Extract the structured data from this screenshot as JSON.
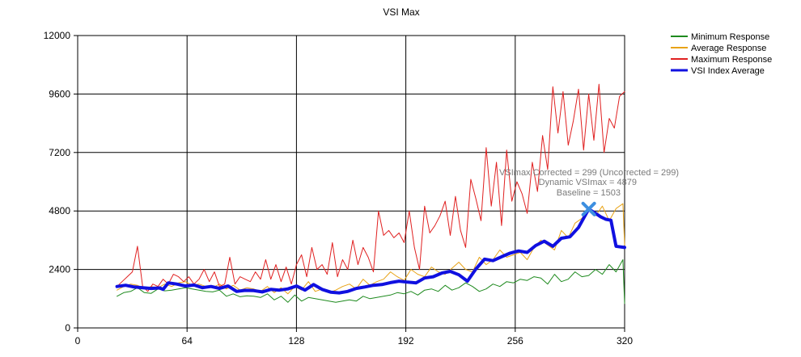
{
  "chart_data": {
    "type": "line",
    "title": "VSI Max",
    "xlabel": "",
    "ylabel": "",
    "xlim": [
      0,
      320
    ],
    "ylim": [
      0,
      12000
    ],
    "x_ticks": [
      "0",
      "64",
      "128",
      "192",
      "256",
      "320"
    ],
    "y_ticks": [
      "0",
      "2400",
      "4800",
      "7200",
      "9600",
      "12000"
    ],
    "grid": true,
    "legend_position": "top-right",
    "annotations": [
      "VSImax Corrected = 299 (Uncorrected = 299)",
      "Dynamic VSImax = 4879",
      "Baseline = 1503"
    ],
    "vsimax_marker": {
      "x": 299,
      "y": 4879,
      "color": "#3d8fe0"
    },
    "series": [
      {
        "name": "Minimum Response",
        "color": "#1e8a1e",
        "width": 1,
        "x": [
          23,
          27,
          31,
          35,
          39,
          43,
          47,
          51,
          55,
          59,
          63,
          67,
          71,
          75,
          79,
          83,
          87,
          91,
          95,
          99,
          103,
          107,
          111,
          115,
          119,
          123,
          127,
          131,
          135,
          139,
          143,
          147,
          151,
          155,
          159,
          163,
          167,
          171,
          175,
          179,
          183,
          187,
          191,
          195,
          199,
          203,
          207,
          211,
          215,
          219,
          223,
          227,
          231,
          235,
          239,
          243,
          247,
          251,
          255,
          259,
          263,
          267,
          271,
          275,
          279,
          283,
          287,
          291,
          295,
          299,
          303,
          307,
          311,
          315,
          319,
          320
        ],
        "y": [
          1300,
          1450,
          1500,
          1650,
          1450,
          1420,
          1600,
          1520,
          1550,
          1600,
          1650,
          1600,
          1550,
          1500,
          1480,
          1550,
          1300,
          1400,
          1280,
          1320,
          1300,
          1250,
          1400,
          1150,
          1300,
          1050,
          1350,
          1100,
          1250,
          1200,
          1150,
          1100,
          1050,
          1100,
          1150,
          1100,
          1300,
          1200,
          1250,
          1300,
          1350,
          1450,
          1400,
          1500,
          1350,
          1550,
          1600,
          1500,
          1750,
          1550,
          1650,
          1850,
          1700,
          1500,
          1600,
          1800,
          1700,
          1900,
          1850,
          2000,
          1950,
          2100,
          2050,
          1800,
          2200,
          1900,
          2000,
          2300,
          2100,
          2150,
          2400,
          2200,
          2600,
          2300,
          2800,
          1000
        ]
      },
      {
        "name": "Average Response",
        "color": "#e8a317",
        "width": 1,
        "x": [
          23,
          27,
          31,
          35,
          39,
          43,
          47,
          51,
          55,
          59,
          63,
          67,
          71,
          75,
          79,
          83,
          87,
          91,
          95,
          99,
          103,
          107,
          111,
          115,
          119,
          123,
          127,
          131,
          135,
          139,
          143,
          147,
          151,
          155,
          159,
          163,
          167,
          171,
          175,
          179,
          183,
          187,
          191,
          195,
          199,
          203,
          207,
          211,
          215,
          219,
          223,
          227,
          231,
          235,
          239,
          243,
          247,
          251,
          255,
          259,
          263,
          267,
          271,
          275,
          279,
          283,
          287,
          291,
          295,
          299,
          303,
          307,
          311,
          315,
          319,
          320
        ],
        "y": [
          1550,
          1700,
          1800,
          1750,
          1600,
          1700,
          1650,
          1800,
          1700,
          1850,
          1900,
          1750,
          1800,
          1700,
          1650,
          1800,
          1600,
          1750,
          1550,
          1650,
          1600,
          1500,
          1700,
          1450,
          1650,
          1400,
          1700,
          1550,
          1900,
          1500,
          1600,
          1450,
          1550,
          1700,
          1800,
          1600,
          2000,
          1750,
          1900,
          2000,
          2300,
          2100,
          1950,
          2400,
          2200,
          2100,
          2500,
          2300,
          2200,
          2450,
          2700,
          2400,
          2300,
          2900,
          2600,
          2800,
          3200,
          2900,
          3000,
          3100,
          2800,
          3300,
          3600,
          3400,
          3200,
          4000,
          3700,
          4300,
          4500,
          4879,
          4600,
          5000,
          4400,
          4900,
          5100,
          3400
        ]
      },
      {
        "name": "Maximum Response",
        "color": "#e02020",
        "width": 1,
        "x": [
          23,
          26,
          29,
          32,
          35,
          38,
          41,
          44,
          47,
          50,
          53,
          56,
          59,
          62,
          65,
          68,
          71,
          74,
          77,
          80,
          83,
          86,
          89,
          92,
          95,
          98,
          101,
          104,
          107,
          110,
          113,
          116,
          119,
          122,
          125,
          128,
          131,
          134,
          137,
          140,
          143,
          146,
          149,
          152,
          155,
          158,
          161,
          164,
          167,
          170,
          173,
          176,
          179,
          182,
          185,
          188,
          191,
          194,
          197,
          200,
          203,
          206,
          209,
          212,
          215,
          218,
          221,
          224,
          227,
          230,
          233,
          236,
          239,
          242,
          245,
          248,
          251,
          254,
          257,
          260,
          263,
          266,
          269,
          272,
          275,
          278,
          281,
          284,
          287,
          290,
          293,
          296,
          299,
          302,
          305,
          308,
          311,
          314,
          317,
          320
        ],
        "y": [
          1700,
          1900,
          2100,
          2300,
          3350,
          1700,
          1500,
          1800,
          1700,
          2000,
          1800,
          2200,
          2100,
          1900,
          2100,
          1800,
          2000,
          2400,
          1900,
          2300,
          1700,
          1800,
          2900,
          1800,
          2100,
          2000,
          1900,
          2300,
          2000,
          2800,
          2000,
          2600,
          1900,
          2500,
          1800,
          2600,
          3000,
          2100,
          3300,
          2400,
          2600,
          2200,
          3500,
          2100,
          2800,
          2400,
          3600,
          2600,
          3300,
          2900,
          2300,
          4800,
          3800,
          4000,
          3700,
          3900,
          3500,
          4800,
          3300,
          2400,
          5000,
          3900,
          4200,
          4600,
          5200,
          3800,
          5400,
          4000,
          3300,
          6100,
          5300,
          4400,
          7400,
          5000,
          6800,
          4200,
          7300,
          5200,
          6000,
          5500,
          4700,
          6800,
          5600,
          7900,
          6500,
          9900,
          8000,
          9700,
          7500,
          8500,
          9800,
          7300,
          9600,
          7700,
          10000,
          7200,
          8600,
          8200,
          9500,
          9700
        ]
      },
      {
        "name": "VSI Index Average",
        "color": "#1010e0",
        "width": 4,
        "x": [
          23,
          28,
          33,
          38,
          43,
          48,
          50,
          53,
          58,
          63,
          68,
          73,
          78,
          83,
          88,
          93,
          98,
          103,
          108,
          113,
          118,
          123,
          128,
          133,
          138,
          143,
          148,
          153,
          158,
          163,
          168,
          173,
          178,
          183,
          188,
          193,
          198,
          203,
          208,
          213,
          218,
          223,
          228,
          233,
          238,
          243,
          248,
          253,
          258,
          263,
          268,
          273,
          278,
          283,
          288,
          293,
          299,
          303,
          306,
          309,
          312,
          315,
          320
        ],
        "y": [
          1700,
          1750,
          1680,
          1650,
          1620,
          1640,
          1580,
          1850,
          1800,
          1720,
          1760,
          1650,
          1700,
          1620,
          1720,
          1500,
          1540,
          1530,
          1480,
          1580,
          1550,
          1600,
          1720,
          1550,
          1780,
          1580,
          1470,
          1440,
          1500,
          1620,
          1680,
          1750,
          1780,
          1860,
          1920,
          1880,
          1850,
          2050,
          2100,
          2250,
          2320,
          2180,
          1920,
          2420,
          2820,
          2760,
          2920,
          3070,
          3160,
          3100,
          3380,
          3560,
          3350,
          3680,
          3740,
          4120,
          4879,
          4700,
          4560,
          4460,
          4420,
          3350,
          3300
        ]
      }
    ]
  }
}
